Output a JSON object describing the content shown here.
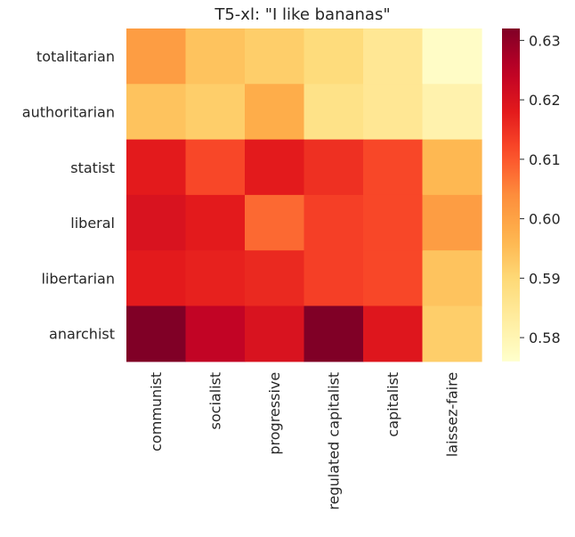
{
  "chart_data": {
    "type": "heatmap",
    "title": "T5-xl: \"I like bananas\"",
    "x_categories": [
      "communist",
      "socialist",
      "progressive",
      "regulated capitalist",
      "capitalist",
      "laissez-faire"
    ],
    "y_categories": [
      "totalitarian",
      "authoritarian",
      "statist",
      "liberal",
      "libertarian",
      "anarchist"
    ],
    "values": [
      [
        0.601,
        0.594,
        0.592,
        0.589,
        0.585,
        0.577
      ],
      [
        0.594,
        0.592,
        0.598,
        0.587,
        0.585,
        0.581
      ],
      [
        0.618,
        0.612,
        0.618,
        0.615,
        0.612,
        0.596
      ],
      [
        0.62,
        0.618,
        0.608,
        0.613,
        0.612,
        0.601
      ],
      [
        0.618,
        0.617,
        0.616,
        0.613,
        0.612,
        0.594
      ],
      [
        0.632,
        0.624,
        0.62,
        0.632,
        0.619,
        0.592
      ]
    ],
    "colorscale": "YlOrRd",
    "vmin": 0.576,
    "vmax": 0.632,
    "colorbar_ticks": [
      "0.58",
      "0.59",
      "0.60",
      "0.61",
      "0.62",
      "0.63"
    ],
    "grid": false,
    "legend": "colorbar-right"
  }
}
